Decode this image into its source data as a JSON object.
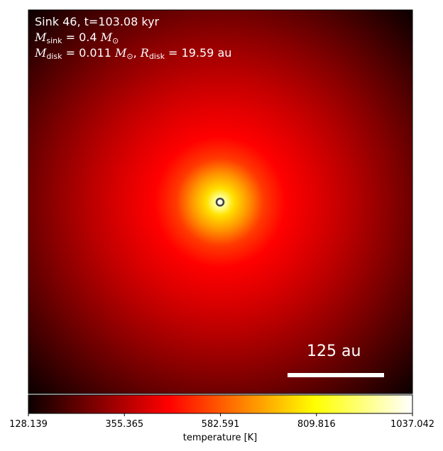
{
  "chart_data": {
    "type": "heatmap",
    "title_lines": {
      "line1": "Sink 46, t=103.08 kyr",
      "m_sink_symbol": "M",
      "m_sink_sub": "sink",
      "m_sink_value": " = 0.4 ",
      "m_disk_symbol": "M",
      "m_disk_sub": "disk",
      "m_disk_value": " = 0.011 ",
      "r_disk_symbol": "R",
      "r_disk_sub": "disk",
      "r_disk_value": " = 19.59 au",
      "solar_mass": "M",
      "solar_sub": "⊙"
    },
    "scale_bar_label": "125 au",
    "colormap": "hot",
    "colorbar": {
      "label": "temperature [K]",
      "vmin": 128.139,
      "vmax": 1037.042,
      "tick_labels": [
        "128.139",
        "355.365",
        "582.591",
        "809.816",
        "1037.042"
      ],
      "tick_values": [
        128.139,
        355.365,
        582.591,
        809.816,
        1037.042
      ]
    },
    "sink_marker": {
      "shape": "ring",
      "color": "#444444"
    }
  }
}
